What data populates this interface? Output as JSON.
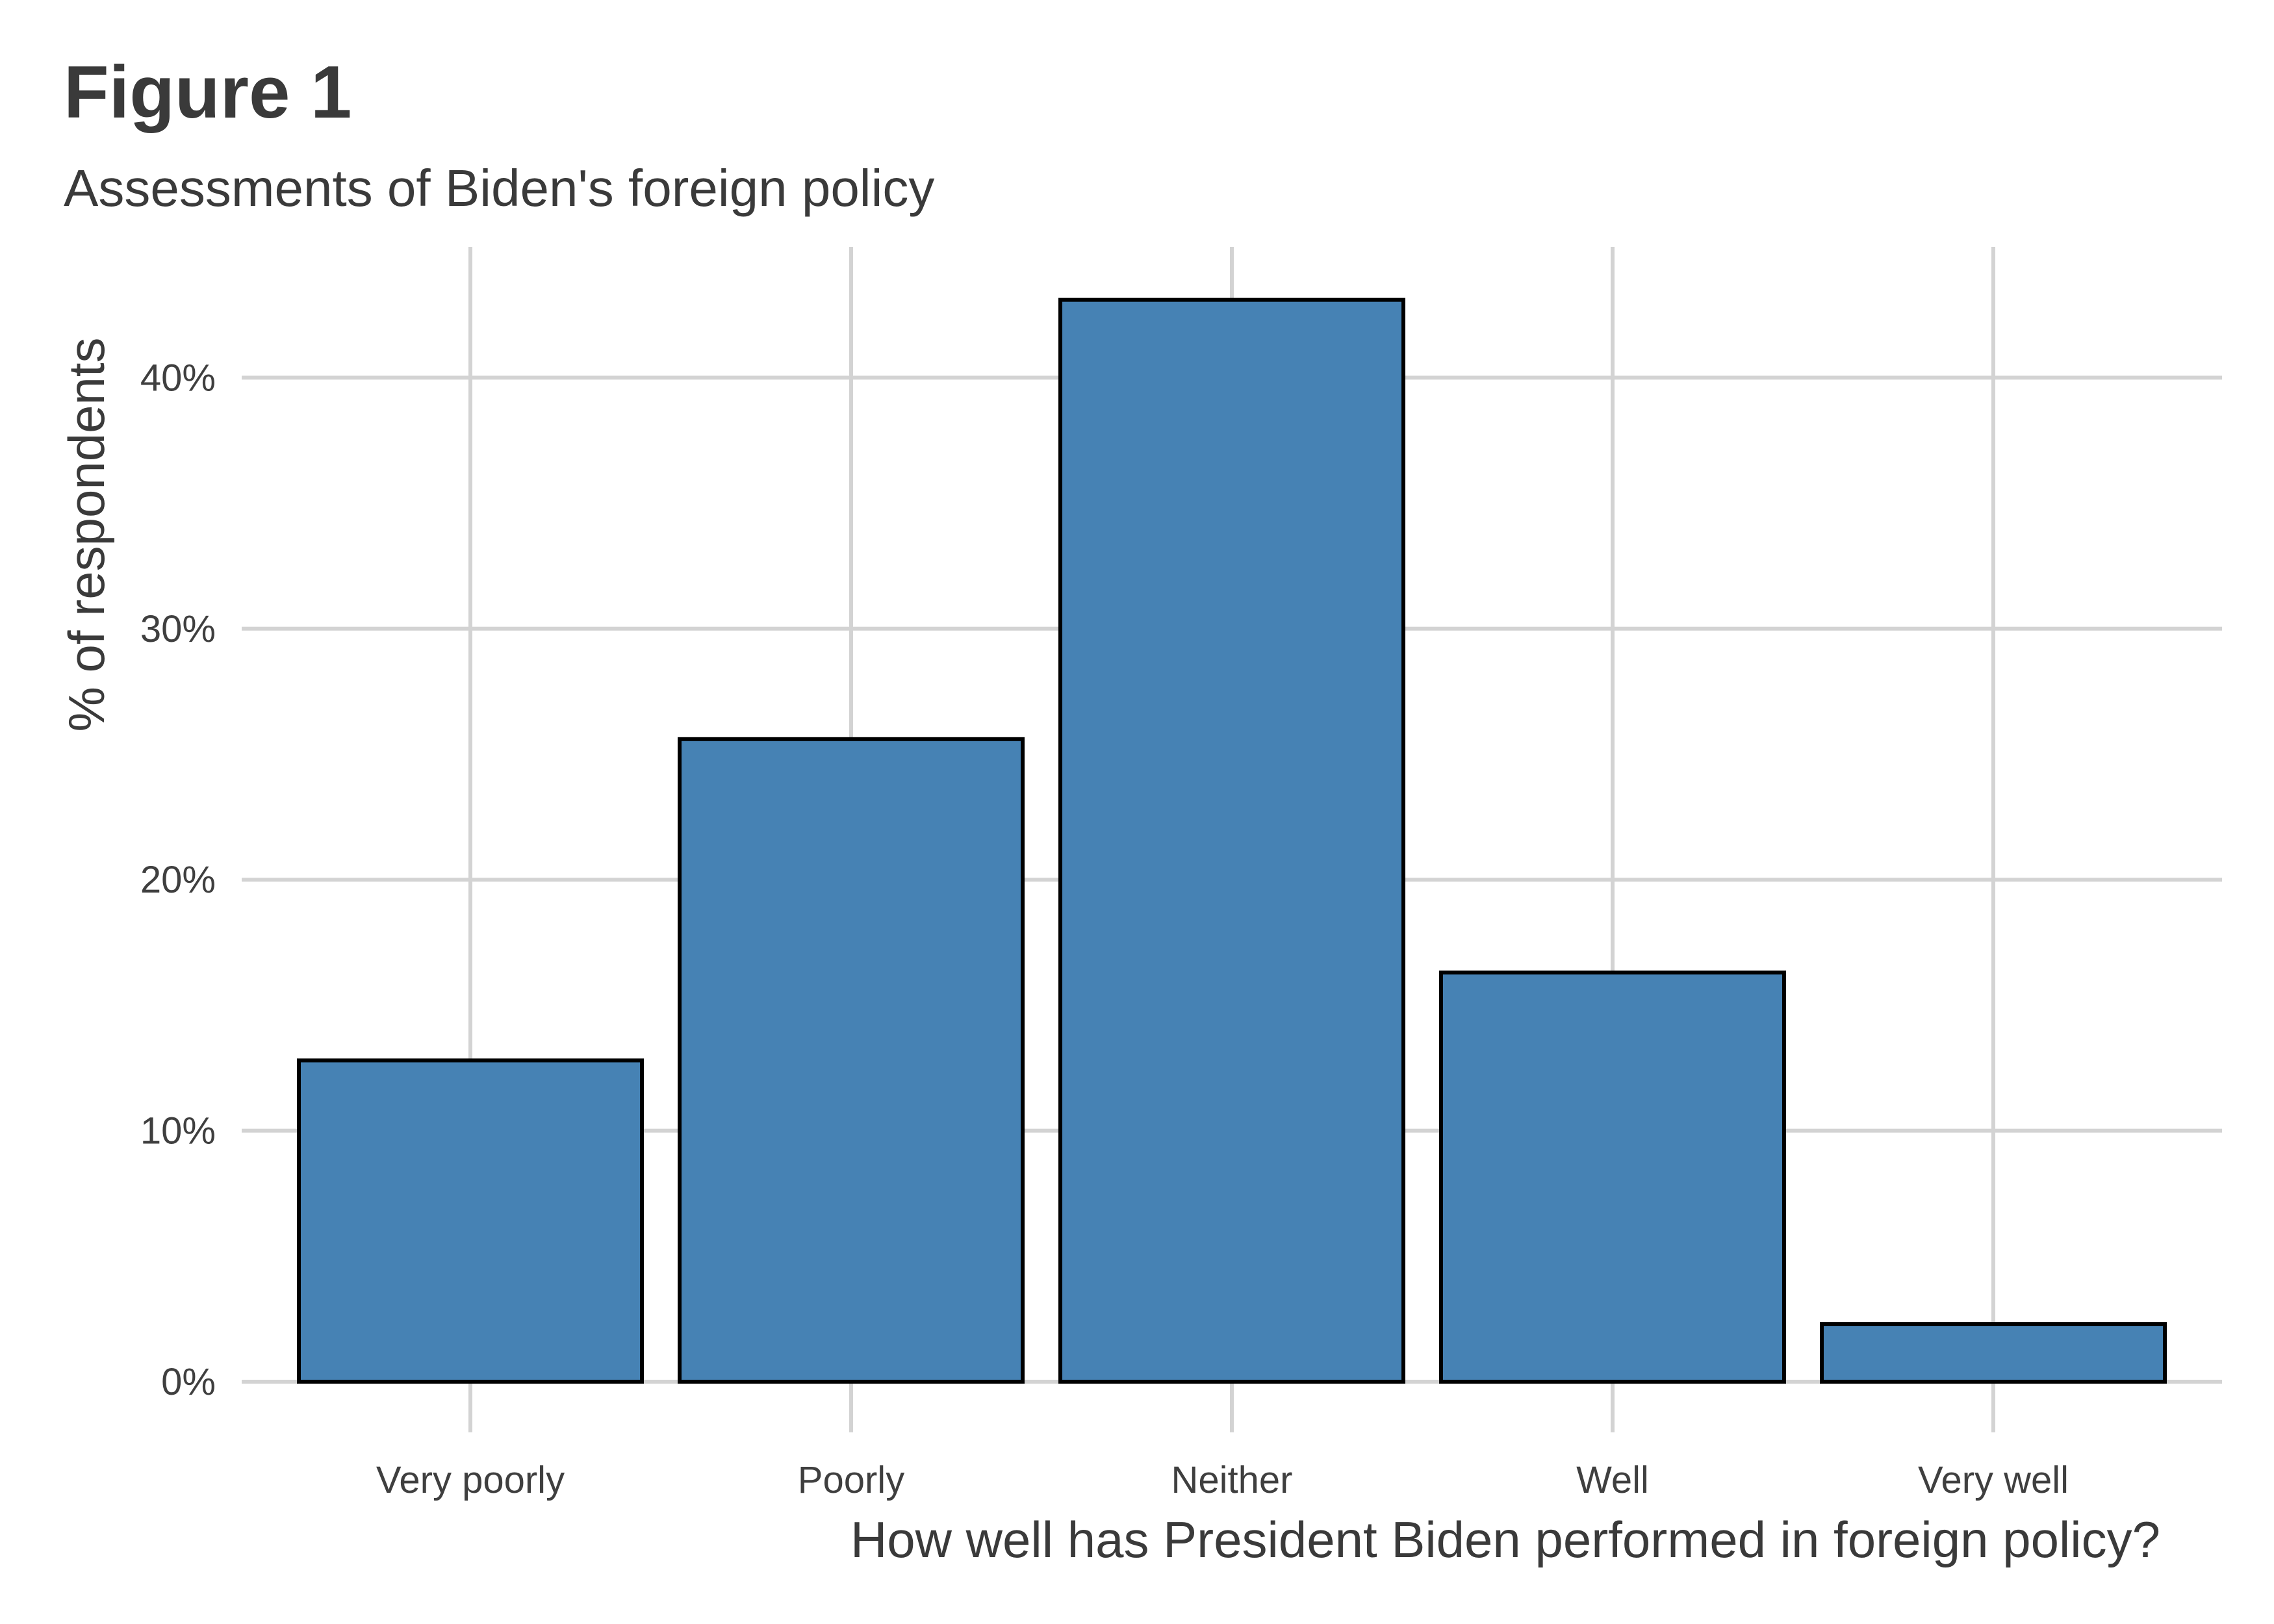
{
  "chart_data": {
    "type": "bar",
    "title": "Figure 1",
    "subtitle": "Assessments of Biden's foreign policy",
    "xlabel": "How well has President Biden performed in foreign policy?",
    "ylabel": "% of respondents",
    "categories": [
      "Very poorly",
      "Poorly",
      "Neither",
      "Well",
      "Very well"
    ],
    "values": [
      12.8,
      25.6,
      43.1,
      16.3,
      2.3
    ],
    "ylim": [
      0,
      45
    ],
    "yticks": [
      0,
      10,
      20,
      30,
      40
    ],
    "ytick_labels": [
      "0%",
      "10%",
      "20%",
      "30%",
      "40%"
    ],
    "grid": true,
    "legend": "none",
    "colors": {
      "bar_fill": "#4682b4",
      "bar_outline": "#000000",
      "grid": "#d3d3d3"
    }
  }
}
